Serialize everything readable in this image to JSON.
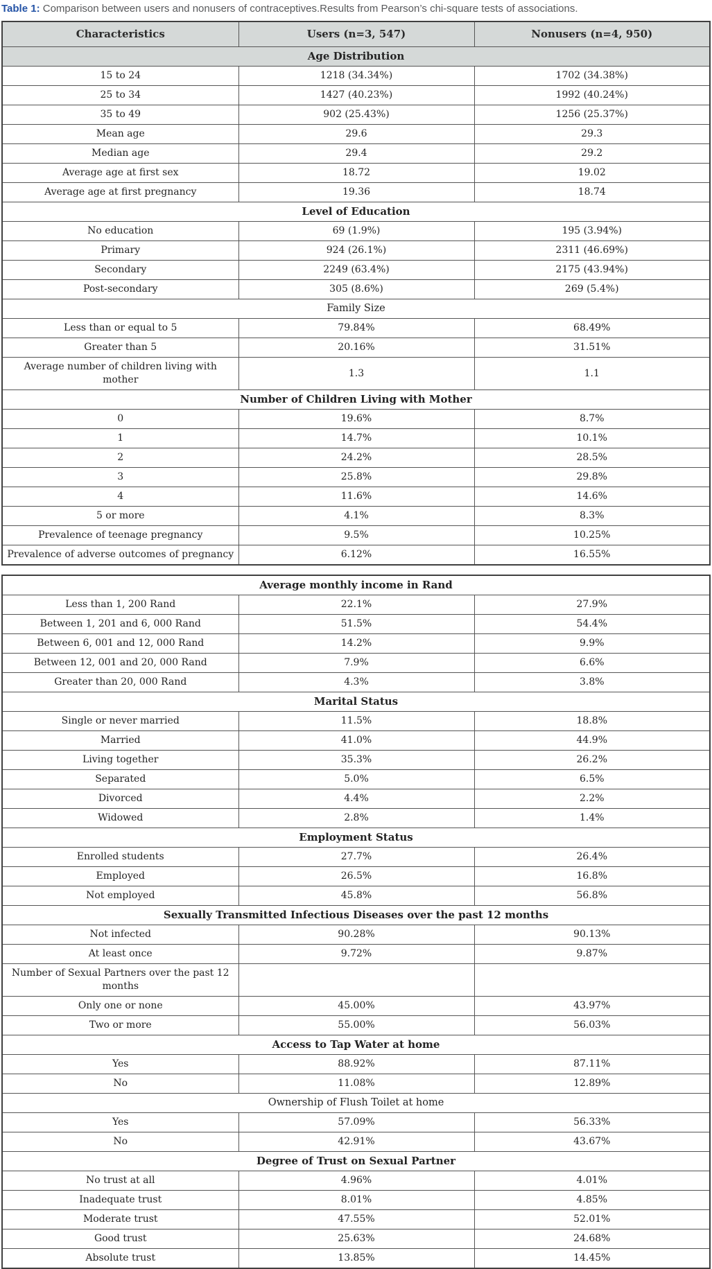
{
  "title": {
    "label": "Table 1:",
    "text": " Comparison between users and nonusers of contraceptives.Results from Pearson’s chi-square tests of associations."
  },
  "colors": {
    "caption_accent": "#2453a6",
    "caption_text": "#58595b",
    "header_row_bg": "#d5d9d8",
    "border": "#555555",
    "cell_text": "#242424"
  },
  "tables": [
    {
      "name": "demographics-table",
      "rows": [
        {
          "type": "columns",
          "shaded": true,
          "cells": [
            "Characteristics",
            "Users (n=3, 547)",
            "Nonusers (n=4, 950)"
          ]
        },
        {
          "type": "section",
          "shaded": true,
          "bold": true,
          "label": "Age Distribution"
        },
        {
          "type": "data",
          "cells": [
            "15 to 24",
            "1218 (34.34%)",
            "1702 (34.38%)"
          ]
        },
        {
          "type": "data",
          "cells": [
            "25 to 34",
            "1427 (40.23%)",
            "1992 (40.24%)"
          ]
        },
        {
          "type": "data",
          "cells": [
            "35 to 49",
            "902 (25.43%)",
            "1256 (25.37%)"
          ]
        },
        {
          "type": "data",
          "cells": [
            "Mean age",
            "29.6",
            "29.3"
          ]
        },
        {
          "type": "data",
          "cells": [
            "Median age",
            "29.4",
            "29.2"
          ]
        },
        {
          "type": "data",
          "cells": [
            "Average age at first sex",
            "18.72",
            "19.02"
          ]
        },
        {
          "type": "data",
          "cells": [
            "Average age at first pregnancy",
            "19.36",
            "18.74"
          ]
        },
        {
          "type": "section",
          "bold": true,
          "label": "Level of Education"
        },
        {
          "type": "data",
          "cells": [
            "No education",
            "69 (1.9%)",
            "195 (3.94%)"
          ]
        },
        {
          "type": "data",
          "cells": [
            "Primary",
            "924 (26.1%)",
            "2311 (46.69%)"
          ]
        },
        {
          "type": "data",
          "cells": [
            "Secondary",
            "2249 (63.4%)",
            "2175 (43.94%)"
          ]
        },
        {
          "type": "data",
          "cells": [
            "Post-secondary",
            "305 (8.6%)",
            "269 (5.4%)"
          ]
        },
        {
          "type": "section",
          "bold": false,
          "label": "Family Size"
        },
        {
          "type": "data",
          "cells": [
            "Less than or equal to 5",
            "79.84%",
            "68.49%"
          ]
        },
        {
          "type": "data",
          "cells": [
            "Greater than 5",
            "20.16%",
            "31.51%"
          ]
        },
        {
          "type": "data",
          "cells": [
            "Average number of children living with mother",
            "1.3",
            "1.1"
          ]
        },
        {
          "type": "section",
          "bold": true,
          "label": "Number of Children Living with Mother"
        },
        {
          "type": "data",
          "cells": [
            "0",
            "19.6%",
            "8.7%"
          ]
        },
        {
          "type": "data",
          "cells": [
            "1",
            "14.7%",
            "10.1%"
          ]
        },
        {
          "type": "data",
          "cells": [
            "2",
            "24.2%",
            "28.5%"
          ]
        },
        {
          "type": "data",
          "cells": [
            "3",
            "25.8%",
            "29.8%"
          ]
        },
        {
          "type": "data",
          "cells": [
            "4",
            "11.6%",
            "14.6%"
          ]
        },
        {
          "type": "data",
          "cells": [
            "5 or more",
            "4.1%",
            "8.3%"
          ]
        },
        {
          "type": "data",
          "cells": [
            "Prevalence of teenage pregnancy",
            "9.5%",
            "10.25%"
          ]
        },
        {
          "type": "data",
          "cells": [
            "Prevalence of adverse outcomes of pregnancy",
            "6.12%",
            "16.55%"
          ]
        }
      ]
    },
    {
      "name": "socioeconomic-table",
      "rows": [
        {
          "type": "section",
          "bold": true,
          "label": "Average monthly income in Rand"
        },
        {
          "type": "data",
          "cells": [
            "Less than 1, 200 Rand",
            "22.1%",
            "27.9%"
          ]
        },
        {
          "type": "data",
          "cells": [
            "Between 1, 201 and 6, 000 Rand",
            "51.5%",
            "54.4%"
          ]
        },
        {
          "type": "data",
          "cells": [
            "Between 6, 001 and 12, 000 Rand",
            "14.2%",
            "9.9%"
          ]
        },
        {
          "type": "data",
          "cells": [
            "Between 12, 001 and 20, 000 Rand",
            "7.9%",
            "6.6%"
          ]
        },
        {
          "type": "data",
          "cells": [
            "Greater than 20, 000 Rand",
            "4.3%",
            "3.8%"
          ]
        },
        {
          "type": "section",
          "bold": true,
          "label": "Marital Status"
        },
        {
          "type": "data",
          "cells": [
            "Single or never married",
            "11.5%",
            "18.8%"
          ]
        },
        {
          "type": "data",
          "cells": [
            "Married",
            "41.0%",
            "44.9%"
          ]
        },
        {
          "type": "data",
          "cells": [
            "Living together",
            "35.3%",
            "26.2%"
          ]
        },
        {
          "type": "data",
          "cells": [
            "Separated",
            "5.0%",
            "6.5%"
          ]
        },
        {
          "type": "data",
          "cells": [
            "Divorced",
            "4.4%",
            "2.2%"
          ]
        },
        {
          "type": "data",
          "cells": [
            "Widowed",
            "2.8%",
            "1.4%"
          ]
        },
        {
          "type": "section",
          "bold": true,
          "label": "Employment Status"
        },
        {
          "type": "data",
          "cells": [
            "Enrolled students",
            "27.7%",
            "26.4%"
          ]
        },
        {
          "type": "data",
          "cells": [
            "Employed",
            "26.5%",
            "16.8%"
          ]
        },
        {
          "type": "data",
          "cells": [
            "Not employed",
            "45.8%",
            "56.8%"
          ]
        },
        {
          "type": "section",
          "bold": true,
          "label": "Sexually Transmitted Infectious Diseases over the past 12 months"
        },
        {
          "type": "data",
          "cells": [
            "Not infected",
            "90.28%",
            "90.13%"
          ]
        },
        {
          "type": "data",
          "cells": [
            "At least once",
            "9.72%",
            "9.87%"
          ]
        },
        {
          "type": "data",
          "cells": [
            "Number of Sexual Partners over the past 12 months",
            "",
            ""
          ]
        },
        {
          "type": "data",
          "cells": [
            "Only one or none",
            "45.00%",
            "43.97%"
          ]
        },
        {
          "type": "data",
          "cells": [
            "Two or more",
            "55.00%",
            "56.03%"
          ]
        },
        {
          "type": "section",
          "bold": true,
          "label": "Access to Tap Water at home"
        },
        {
          "type": "data",
          "cells": [
            "Yes",
            "88.92%",
            "87.11%"
          ]
        },
        {
          "type": "data",
          "cells": [
            "No",
            "11.08%",
            "12.89%"
          ]
        },
        {
          "type": "section",
          "bold": false,
          "label": "Ownership of Flush Toilet at home"
        },
        {
          "type": "data",
          "cells": [
            "Yes",
            "57.09%",
            "56.33%"
          ]
        },
        {
          "type": "data",
          "cells": [
            "No",
            "42.91%",
            "43.67%"
          ]
        },
        {
          "type": "section",
          "bold": true,
          "label": "Degree of Trust on Sexual Partner"
        },
        {
          "type": "data",
          "cells": [
            "No trust at all",
            "4.96%",
            "4.01%"
          ]
        },
        {
          "type": "data",
          "cells": [
            "Inadequate trust",
            "8.01%",
            "4.85%"
          ]
        },
        {
          "type": "data",
          "cells": [
            "Moderate trust",
            "47.55%",
            "52.01%"
          ]
        },
        {
          "type": "data",
          "cells": [
            "Good trust",
            "25.63%",
            "24.68%"
          ]
        },
        {
          "type": "data",
          "cells": [
            "Absolute trust",
            "13.85%",
            "14.45%"
          ]
        }
      ]
    }
  ]
}
